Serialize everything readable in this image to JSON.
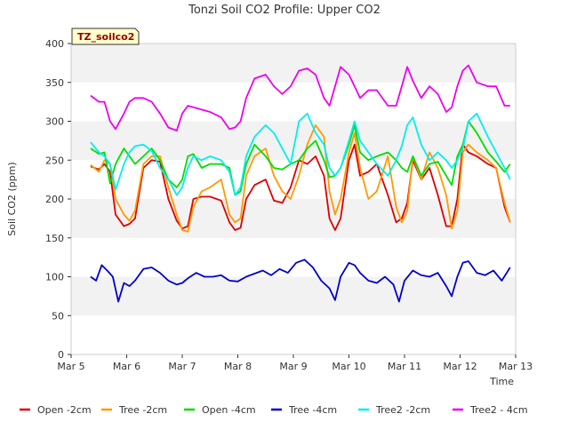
{
  "chart_data": {
    "type": "line",
    "title": "Tonzi Soil CO2 Profile: Upper CO2",
    "xlabel": "Time",
    "ylabel": "Soil CO2 (ppm)",
    "ylim": [
      0,
      400
    ],
    "yticks": [
      0,
      50,
      100,
      150,
      200,
      250,
      300,
      350,
      400
    ],
    "xlim": [
      0,
      8
    ],
    "xticks": [
      0,
      1,
      2,
      3,
      4,
      5,
      6,
      7,
      8
    ],
    "xtick_labels": [
      "Mar 5",
      "Mar 6",
      "Mar 7",
      "Mar 8",
      "Mar 9",
      "Mar 10",
      "Mar 11",
      "Mar 12",
      "Mar 13"
    ],
    "x_units": "days since Mar 5",
    "grid": "horizontal bands",
    "legend_position": "bottom",
    "site_badge": "TZ_soilco2",
    "series": [
      {
        "name": "Open -2cm",
        "color": "#dd0000",
        "x": [
          0.35,
          0.5,
          0.6,
          0.7,
          0.8,
          0.95,
          1.05,
          1.15,
          1.3,
          1.45,
          1.6,
          1.75,
          1.9,
          2.0,
          2.1,
          2.2,
          2.35,
          2.5,
          2.7,
          2.85,
          2.95,
          3.05,
          3.15,
          3.3,
          3.5,
          3.65,
          3.8,
          3.95,
          4.1,
          4.25,
          4.4,
          4.55,
          4.65,
          4.75,
          4.85,
          5.0,
          5.1,
          5.2,
          5.35,
          5.5,
          5.7,
          5.85,
          5.95,
          6.05,
          6.15,
          6.3,
          6.45,
          6.6,
          6.75,
          6.85,
          6.95,
          7.05,
          7.15,
          7.3,
          7.5,
          7.65,
          7.8,
          7.9
        ],
        "y": [
          242,
          238,
          245,
          235,
          180,
          165,
          168,
          175,
          240,
          250,
          248,
          200,
          172,
          162,
          165,
          200,
          203,
          203,
          198,
          170,
          160,
          163,
          200,
          218,
          225,
          198,
          195,
          215,
          250,
          245,
          255,
          230,
          175,
          160,
          175,
          250,
          270,
          230,
          235,
          245,
          205,
          170,
          175,
          195,
          250,
          225,
          240,
          205,
          165,
          165,
          200,
          270,
          260,
          255,
          245,
          240,
          190,
          170
        ]
      },
      {
        "name": "Tree -2cm",
        "color": "#ff9900",
        "x": [
          0.35,
          0.5,
          0.6,
          0.7,
          0.8,
          0.95,
          1.05,
          1.15,
          1.3,
          1.45,
          1.6,
          1.75,
          1.9,
          2.0,
          2.1,
          2.2,
          2.35,
          2.5,
          2.7,
          2.85,
          2.95,
          3.05,
          3.15,
          3.3,
          3.5,
          3.65,
          3.8,
          3.95,
          4.1,
          4.25,
          4.4,
          4.55,
          4.65,
          4.75,
          4.85,
          5.0,
          5.1,
          5.2,
          5.35,
          5.5,
          5.7,
          5.85,
          5.95,
          6.05,
          6.15,
          6.3,
          6.45,
          6.6,
          6.75,
          6.85,
          6.95,
          7.05,
          7.15,
          7.3,
          7.5,
          7.65,
          7.8,
          7.9
        ],
        "y": [
          244,
          235,
          250,
          245,
          200,
          180,
          172,
          185,
          245,
          255,
          255,
          215,
          180,
          160,
          158,
          190,
          210,
          215,
          225,
          180,
          170,
          175,
          230,
          255,
          265,
          230,
          210,
          200,
          230,
          270,
          295,
          280,
          210,
          180,
          200,
          260,
          285,
          240,
          200,
          210,
          255,
          190,
          170,
          185,
          255,
          225,
          260,
          240,
          205,
          162,
          185,
          260,
          270,
          260,
          250,
          240,
          195,
          170
        ]
      },
      {
        "name": "Open -4cm",
        "color": "#00dd00",
        "x": [
          0.35,
          0.5,
          0.6,
          0.7,
          0.8,
          0.95,
          1.05,
          1.15,
          1.3,
          1.45,
          1.6,
          1.75,
          1.9,
          2.0,
          2.1,
          2.2,
          2.35,
          2.5,
          2.7,
          2.85,
          2.95,
          3.05,
          3.15,
          3.3,
          3.5,
          3.65,
          3.8,
          3.95,
          4.1,
          4.25,
          4.4,
          4.55,
          4.65,
          4.75,
          4.85,
          5.0,
          5.1,
          5.2,
          5.35,
          5.5,
          5.7,
          5.85,
          5.95,
          6.05,
          6.15,
          6.3,
          6.45,
          6.6,
          6.75,
          6.85,
          6.95,
          7.05,
          7.15,
          7.3,
          7.5,
          7.65,
          7.8,
          7.9
        ],
        "y": [
          265,
          258,
          260,
          220,
          245,
          265,
          255,
          245,
          255,
          265,
          250,
          225,
          215,
          225,
          255,
          258,
          240,
          245,
          245,
          240,
          205,
          210,
          245,
          270,
          255,
          240,
          238,
          245,
          250,
          265,
          275,
          250,
          228,
          230,
          240,
          270,
          295,
          260,
          250,
          255,
          260,
          250,
          240,
          235,
          255,
          230,
          245,
          248,
          230,
          218,
          255,
          270,
          300,
          285,
          260,
          248,
          235,
          245
        ]
      },
      {
        "name": "Tree -4cm",
        "color": "#0000cc",
        "x": [
          0.35,
          0.45,
          0.55,
          0.65,
          0.75,
          0.85,
          0.95,
          1.05,
          1.15,
          1.3,
          1.45,
          1.6,
          1.75,
          1.9,
          2.0,
          2.1,
          2.25,
          2.4,
          2.55,
          2.7,
          2.85,
          3.0,
          3.15,
          3.3,
          3.45,
          3.6,
          3.75,
          3.9,
          4.05,
          4.2,
          4.35,
          4.5,
          4.65,
          4.75,
          4.85,
          5.0,
          5.1,
          5.2,
          5.35,
          5.5,
          5.65,
          5.8,
          5.9,
          6.0,
          6.15,
          6.3,
          6.45,
          6.6,
          6.75,
          6.85,
          6.95,
          7.05,
          7.15,
          7.3,
          7.45,
          7.6,
          7.75,
          7.9
        ],
        "y": [
          100,
          95,
          115,
          108,
          100,
          68,
          92,
          88,
          95,
          110,
          112,
          105,
          95,
          90,
          92,
          98,
          105,
          100,
          100,
          102,
          95,
          94,
          100,
          104,
          108,
          102,
          110,
          105,
          118,
          122,
          112,
          95,
          85,
          70,
          100,
          118,
          115,
          105,
          95,
          92,
          100,
          90,
          68,
          95,
          108,
          102,
          100,
          105,
          88,
          75,
          100,
          118,
          120,
          105,
          102,
          108,
          95,
          112
        ]
      },
      {
        "name": "Tree2 -2cm",
        "color": "#00eeee",
        "x": [
          0.35,
          0.5,
          0.6,
          0.7,
          0.8,
          0.95,
          1.05,
          1.15,
          1.3,
          1.45,
          1.6,
          1.75,
          1.9,
          2.0,
          2.1,
          2.2,
          2.35,
          2.5,
          2.7,
          2.85,
          2.95,
          3.05,
          3.15,
          3.3,
          3.5,
          3.65,
          3.8,
          3.95,
          4.1,
          4.25,
          4.4,
          4.55,
          4.65,
          4.75,
          4.85,
          5.0,
          5.1,
          5.2,
          5.35,
          5.5,
          5.7,
          5.85,
          5.95,
          6.05,
          6.15,
          6.3,
          6.45,
          6.6,
          6.75,
          6.85,
          6.95,
          7.05,
          7.15,
          7.3,
          7.5,
          7.65,
          7.8,
          7.9
        ],
        "y": [
          273,
          260,
          255,
          245,
          212,
          245,
          260,
          268,
          270,
          262,
          240,
          225,
          205,
          215,
          240,
          255,
          250,
          255,
          250,
          235,
          205,
          215,
          255,
          280,
          295,
          285,
          265,
          245,
          300,
          310,
          285,
          270,
          240,
          230,
          240,
          275,
          300,
          275,
          260,
          245,
          230,
          250,
          268,
          295,
          305,
          270,
          250,
          260,
          250,
          240,
          250,
          265,
          300,
          310,
          280,
          260,
          240,
          225
        ]
      },
      {
        "name": "Tree2 - 4cm",
        "color": "#ee00ee",
        "x": [
          0.35,
          0.5,
          0.6,
          0.7,
          0.8,
          0.95,
          1.05,
          1.15,
          1.3,
          1.45,
          1.6,
          1.75,
          1.9,
          2.0,
          2.1,
          2.2,
          2.35,
          2.5,
          2.7,
          2.85,
          2.95,
          3.05,
          3.15,
          3.3,
          3.5,
          3.65,
          3.8,
          3.95,
          4.1,
          4.25,
          4.4,
          4.55,
          4.65,
          4.75,
          4.85,
          5.0,
          5.1,
          5.2,
          5.35,
          5.5,
          5.7,
          5.85,
          5.95,
          6.05,
          6.15,
          6.3,
          6.45,
          6.6,
          6.75,
          6.85,
          6.95,
          7.05,
          7.15,
          7.3,
          7.5,
          7.65,
          7.8,
          7.9
        ],
        "y": [
          333,
          325,
          325,
          300,
          290,
          310,
          325,
          330,
          330,
          325,
          310,
          292,
          288,
          310,
          320,
          318,
          315,
          312,
          305,
          290,
          292,
          300,
          330,
          355,
          360,
          345,
          335,
          345,
          365,
          368,
          360,
          330,
          320,
          345,
          370,
          360,
          345,
          330,
          340,
          340,
          320,
          320,
          345,
          370,
          352,
          330,
          345,
          335,
          312,
          318,
          345,
          365,
          372,
          350,
          345,
          345,
          320,
          320
        ]
      }
    ]
  }
}
